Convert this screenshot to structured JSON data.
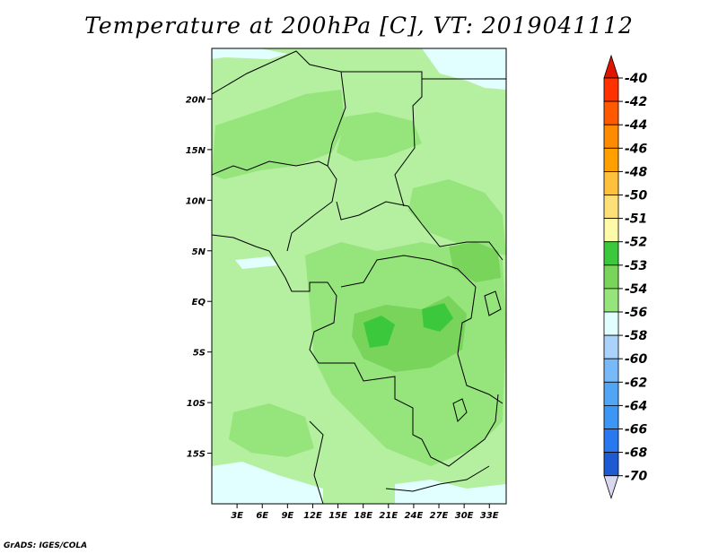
{
  "title": "Temperature at 200hPa [C], VT: 2019041112",
  "credit": "GrADS: IGES/COLA",
  "map": {
    "lon_range": [
      0,
      35
    ],
    "lat_range": [
      -20,
      25
    ],
    "lat_ticks": [
      {
        "value": 20,
        "label": "20N"
      },
      {
        "value": 15,
        "label": "15N"
      },
      {
        "value": 10,
        "label": "10N"
      },
      {
        "value": 5,
        "label": "5N"
      },
      {
        "value": 0,
        "label": "EQ"
      },
      {
        "value": -5,
        "label": "5S"
      },
      {
        "value": -10,
        "label": "10S"
      },
      {
        "value": -15,
        "label": "15S"
      }
    ],
    "lon_ticks": [
      {
        "value": 3,
        "label": "3E"
      },
      {
        "value": 6,
        "label": "6E"
      },
      {
        "value": 9,
        "label": "9E"
      },
      {
        "value": 12,
        "label": "12E"
      },
      {
        "value": 15,
        "label": "15E"
      },
      {
        "value": 18,
        "label": "18E"
      },
      {
        "value": 21,
        "label": "21E"
      },
      {
        "value": 24,
        "label": "24E"
      },
      {
        "value": 27,
        "label": "27E"
      },
      {
        "value": 30,
        "label": "30E"
      },
      {
        "value": 33,
        "label": "33E"
      }
    ],
    "background_color": "#b4f0a0",
    "colors": {
      "lt53": "#96e47c",
      "lt52": "#78d45a",
      "lt51": "#3cc83c",
      "gt54": "#e1ffff"
    }
  },
  "colorbar": {
    "levels": [
      {
        "label": "-40",
        "color": "#ff3200"
      },
      {
        "label": "-42",
        "color": "#ff5a00"
      },
      {
        "label": "-44",
        "color": "#ff8c00"
      },
      {
        "label": "-46",
        "color": "#ffa000"
      },
      {
        "label": "-48",
        "color": "#ffc03c"
      },
      {
        "label": "-50",
        "color": "#ffe078"
      },
      {
        "label": "-51",
        "color": "#fffaaa"
      },
      {
        "label": "-52",
        "color": "#3cc83c"
      },
      {
        "label": "-53",
        "color": "#78d45a"
      },
      {
        "label": "-54",
        "color": "#96e47c"
      },
      {
        "label": "-56",
        "color": "#e1ffff"
      },
      {
        "label": "-58",
        "color": "#aad2fa"
      },
      {
        "label": "-60",
        "color": "#78b9fa"
      },
      {
        "label": "-62",
        "color": "#50a5f5"
      },
      {
        "label": "-64",
        "color": "#3c96f5"
      },
      {
        "label": "-66",
        "color": "#2878f0"
      },
      {
        "label": "-68",
        "color": "#1e5ad2"
      },
      {
        "label": "-70",
        "color": "#1e3cb4"
      }
    ],
    "top_triangle_color": "#e11400",
    "bottom_triangle_color": "#0a1464"
  }
}
